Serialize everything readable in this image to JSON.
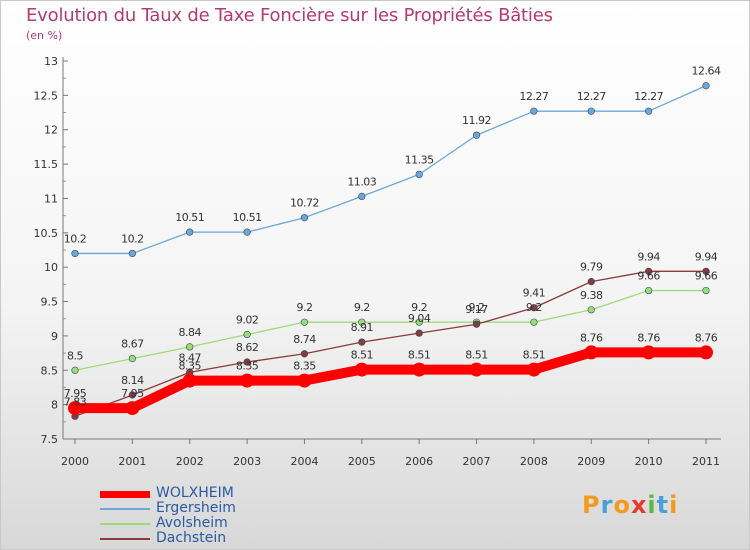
{
  "title": "Evolution du Taux de Taxe Foncière sur les Propriétés Bâties",
  "subtitle": "(en %)",
  "logo_letters": [
    "P",
    "r",
    "o",
    "x",
    "i",
    "t",
    "i"
  ],
  "logo_colors": [
    "#f29a1b",
    "#4a9fd8",
    "#f29a1b",
    "#e53a2a",
    "#5ab848",
    "#4a9fd8",
    "#f29a1b"
  ],
  "chart_data": {
    "type": "line",
    "title": "Evolution du Taux de Taxe Foncière sur les Propriétés Bâties",
    "ylabel": "(en %)",
    "xlabel": "",
    "x": [
      "2000",
      "2001",
      "2002",
      "2003",
      "2004",
      "2005",
      "2006",
      "2007",
      "2008",
      "2009",
      "2010",
      "2011"
    ],
    "ylim": [
      7.5,
      13
    ],
    "yticks": [
      "7.5",
      "8",
      "8.5",
      "9",
      "9.5",
      "10",
      "10.5",
      "11",
      "11.5",
      "12",
      "12.5",
      "13"
    ],
    "grid": false,
    "legend_position": "bottom-left",
    "series": [
      {
        "name": "WOLXHEIM",
        "color": "#ff0000",
        "values": [
          7.95,
          7.95,
          8.35,
          8.35,
          8.35,
          8.51,
          8.51,
          8.51,
          8.51,
          8.76,
          8.76,
          8.76
        ],
        "labels": [
          "7.95",
          "7.95",
          "8.35",
          "8.35",
          "8.35",
          "8.51",
          "8.51",
          "8.51",
          "8.51",
          "8.76",
          "8.76",
          "8.76"
        ]
      },
      {
        "name": "Ergersheim",
        "color": "#6ea6d8",
        "values": [
          10.2,
          10.2,
          10.51,
          10.51,
          10.72,
          11.03,
          11.35,
          11.92,
          12.27,
          12.27,
          12.27,
          12.64
        ],
        "labels": [
          "10.2",
          "10.2",
          "10.51",
          "10.51",
          "10.72",
          "11.03",
          "11.35",
          "11.92",
          "12.27",
          "12.27",
          "12.27",
          "12.64"
        ]
      },
      {
        "name": "Avolsheim",
        "color": "#9ddb76",
        "values": [
          8.5,
          8.67,
          8.84,
          9.02,
          9.2,
          9.2,
          9.2,
          9.2,
          9.2,
          9.38,
          9.66,
          9.66
        ],
        "labels": [
          "8.5",
          "8.67",
          "8.84",
          "9.02",
          "9.2",
          "9.2",
          "9.2",
          "9.2",
          "9.2",
          "9.38",
          "9.66",
          "9.66"
        ]
      },
      {
        "name": "Dachstein",
        "color": "#8a3a3a",
        "values": [
          7.83,
          8.14,
          8.47,
          8.62,
          8.74,
          8.91,
          9.04,
          9.17,
          9.41,
          9.79,
          9.94,
          9.94
        ],
        "labels": [
          "7.83",
          "8.14",
          "8.47",
          "8.62",
          "8.74",
          "8.91",
          "9.04",
          "9.17",
          "9.41",
          "9.79",
          "9.94",
          "9.94"
        ]
      }
    ]
  },
  "legend": [
    {
      "name": "WOLXHEIM",
      "color": "#ff0000"
    },
    {
      "name": "Ergersheim",
      "color": "#6ea6d8"
    },
    {
      "name": "Avolsheim",
      "color": "#9ddb76"
    },
    {
      "name": "Dachstein",
      "color": "#8a3a3a"
    }
  ]
}
